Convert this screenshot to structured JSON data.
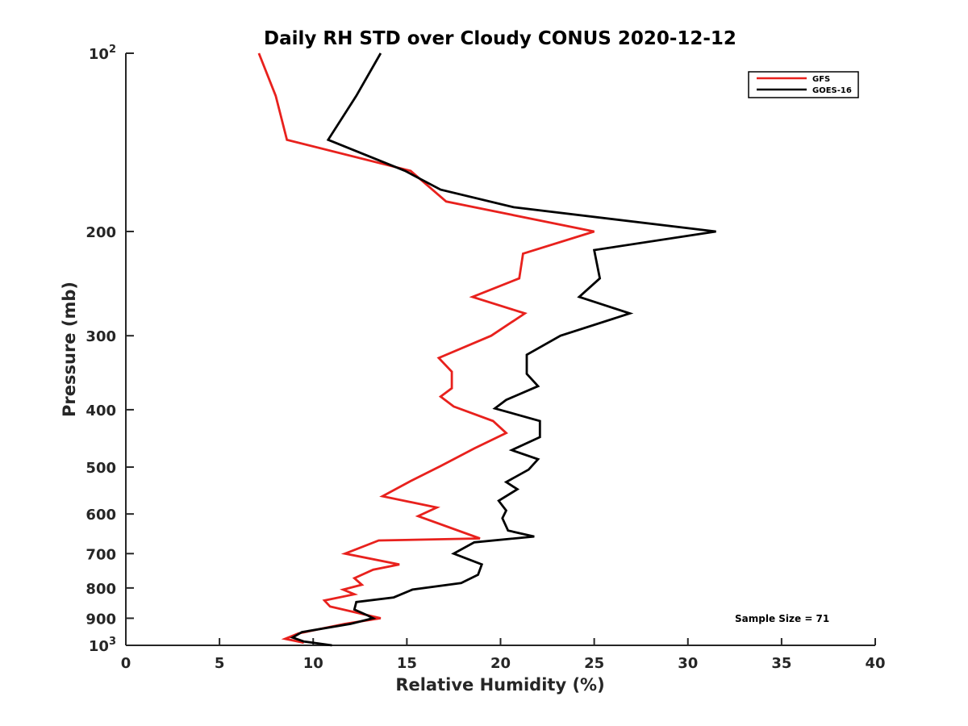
{
  "chart_data": {
    "type": "line",
    "title": "Daily RH STD over Cloudy CONUS 2020-12-12",
    "xlabel": "Relative Humidity (%)",
    "ylabel": "Pressure (mb)",
    "xlim": [
      0,
      40
    ],
    "ylim": [
      100,
      1000
    ],
    "yscale": "log",
    "y_reversed": true,
    "x_ticks": [
      0,
      5,
      10,
      15,
      20,
      25,
      30,
      35,
      40
    ],
    "x_tick_labels": [
      "0",
      "5",
      "10",
      "15",
      "20",
      "25",
      "30",
      "35",
      "40"
    ],
    "y_ticks": [
      {
        "value": 100,
        "label": "10",
        "sup": "2"
      },
      {
        "value": 200,
        "label": "200"
      },
      {
        "value": 300,
        "label": "300"
      },
      {
        "value": 400,
        "label": "400"
      },
      {
        "value": 500,
        "label": "500"
      },
      {
        "value": 600,
        "label": "600"
      },
      {
        "value": 700,
        "label": "700"
      },
      {
        "value": 800,
        "label": "800"
      },
      {
        "value": 900,
        "label": "900"
      },
      {
        "value": 1000,
        "label": "10",
        "sup": "3"
      }
    ],
    "legend_position": "top-right",
    "annotation": "Sample Size = 71",
    "series": [
      {
        "name": "GFS",
        "color": "#e8211d",
        "x": [
          7.1,
          8.0,
          8.6,
          15.2,
          17.1,
          25.0,
          21.2,
          21.0,
          18.5,
          21.3,
          19.5,
          16.7,
          17.4,
          17.4,
          16.8,
          17.5,
          19.6,
          20.3,
          18.6,
          16.8,
          15.2,
          13.7,
          16.6,
          15.6,
          18.9,
          13.5,
          11.7,
          14.6,
          13.2,
          12.2,
          12.6,
          11.6,
          12.2,
          10.6,
          10.9,
          13.6,
          11.7,
          9.2,
          8.5,
          9.5
        ],
        "y": [
          100,
          118,
          140,
          158,
          178,
          200,
          218,
          240,
          258,
          275,
          300,
          327,
          345,
          368,
          380,
          395,
          418,
          438,
          465,
          498,
          528,
          560,
          585,
          605,
          660,
          665,
          700,
          730,
          745,
          770,
          790,
          805,
          820,
          840,
          860,
          900,
          920,
          955,
          975,
          990
        ]
      },
      {
        "name": "GOES-16",
        "color": "#000000",
        "x": [
          13.6,
          12.3,
          10.8,
          14.9,
          16.8,
          20.7,
          31.5,
          25.0,
          25.3,
          24.2,
          26.9,
          23.2,
          21.4,
          21.4,
          22.0,
          20.3,
          19.7,
          22.1,
          22.1,
          20.6,
          22.0,
          21.5,
          20.3,
          20.9,
          19.9,
          20.3,
          20.1,
          20.4,
          21.8,
          18.6,
          17.5,
          19.0,
          18.8,
          17.9,
          15.3,
          14.3,
          12.3,
          12.2,
          12.9,
          13.2,
          12.0,
          9.4,
          8.9,
          9.5,
          11.0
        ],
        "y": [
          100,
          118,
          140,
          158,
          170,
          182,
          200,
          215,
          240,
          258,
          275,
          300,
          323,
          348,
          365,
          385,
          398,
          418,
          445,
          468,
          485,
          505,
          530,
          545,
          570,
          592,
          610,
          640,
          655,
          670,
          700,
          730,
          760,
          785,
          805,
          830,
          845,
          870,
          890,
          900,
          920,
          950,
          970,
          985,
          1000
        ]
      }
    ]
  }
}
